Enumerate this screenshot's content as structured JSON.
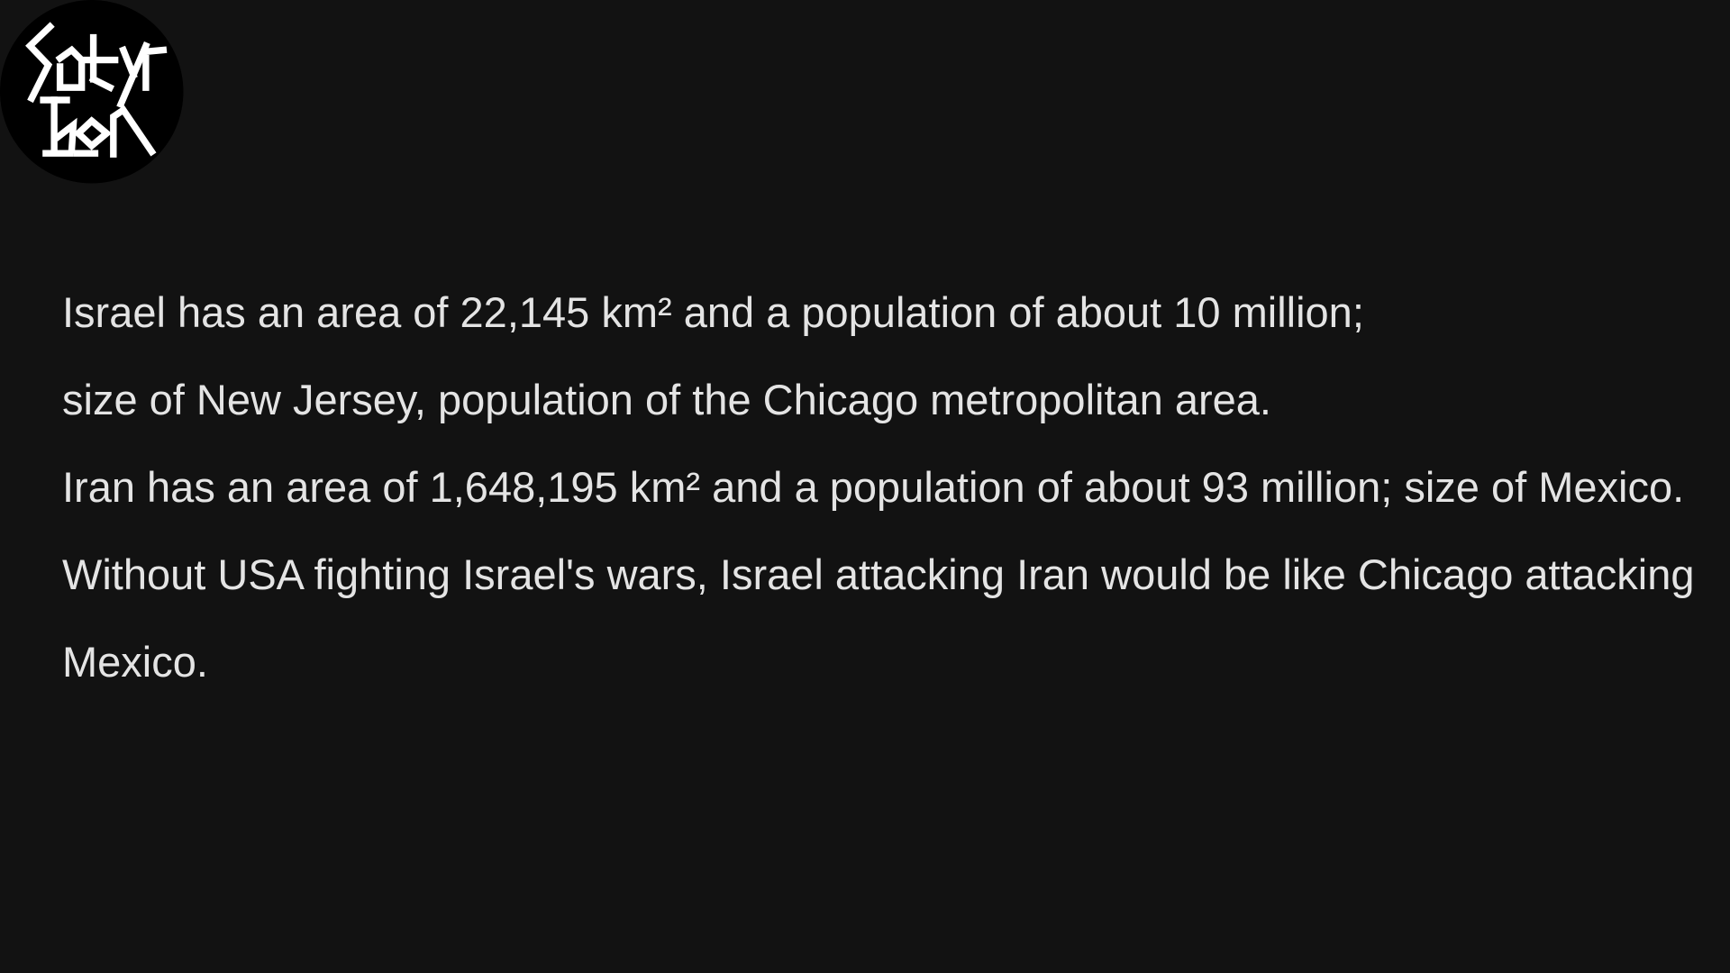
{
  "logo": {
    "text": "Satyr Ikon",
    "icon": "satyr-ikon-logo"
  },
  "post": {
    "paragraphs": [
      "Israel has an area of 22,145 km² and a population of about 10 million;",
      "size of New Jersey, population of the Chicago metropolitan area.",
      "Iran has an area of 1,648,195 km² and a population of about 93 million; size of Mexico.",
      "Without USA fighting Israel's wars, Israel attacking Iran would be like Chicago attacking Mexico."
    ]
  },
  "colors": {
    "background": "#121212",
    "text": "#e4e4e4",
    "logo_bg": "#000000",
    "logo_fg": "#ffffff"
  }
}
